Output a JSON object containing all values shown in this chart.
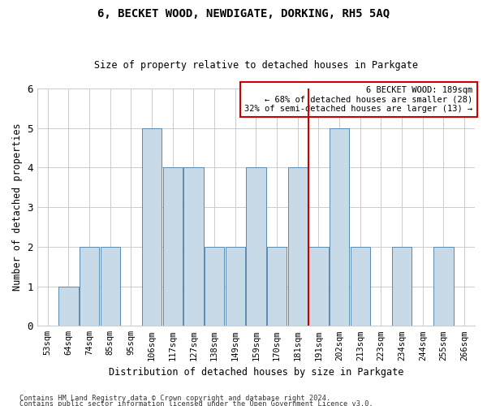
{
  "title": "6, BECKET WOOD, NEWDIGATE, DORKING, RH5 5AQ",
  "subtitle": "Size of property relative to detached houses in Parkgate",
  "xlabel": "Distribution of detached houses by size in Parkgate",
  "ylabel": "Number of detached properties",
  "categories": [
    "53sqm",
    "64sqm",
    "74sqm",
    "85sqm",
    "95sqm",
    "106sqm",
    "117sqm",
    "127sqm",
    "138sqm",
    "149sqm",
    "159sqm",
    "170sqm",
    "181sqm",
    "191sqm",
    "202sqm",
    "213sqm",
    "223sqm",
    "234sqm",
    "244sqm",
    "255sqm",
    "266sqm"
  ],
  "values": [
    0,
    1,
    2,
    2,
    0,
    5,
    4,
    4,
    2,
    2,
    4,
    2,
    4,
    2,
    5,
    2,
    0,
    2,
    0,
    2,
    0
  ],
  "bar_color": "#c8d9e8",
  "bar_edge_color": "#5a8ab0",
  "highlight_line_color": "#cc0000",
  "highlight_line_idx": 12,
  "ylim": [
    0,
    6
  ],
  "yticks": [
    0,
    1,
    2,
    3,
    4,
    5,
    6
  ],
  "annotation_text": "6 BECKET WOOD: 189sqm\n← 68% of detached houses are smaller (28)\n32% of semi-detached houses are larger (13) →",
  "annotation_box_color": "#ffffff",
  "annotation_box_edgecolor": "#cc0000",
  "footnote1": "Contains HM Land Registry data © Crown copyright and database right 2024.",
  "footnote2": "Contains public sector information licensed under the Open Government Licence v3.0.",
  "background_color": "#ffffff",
  "grid_color": "#cccccc"
}
